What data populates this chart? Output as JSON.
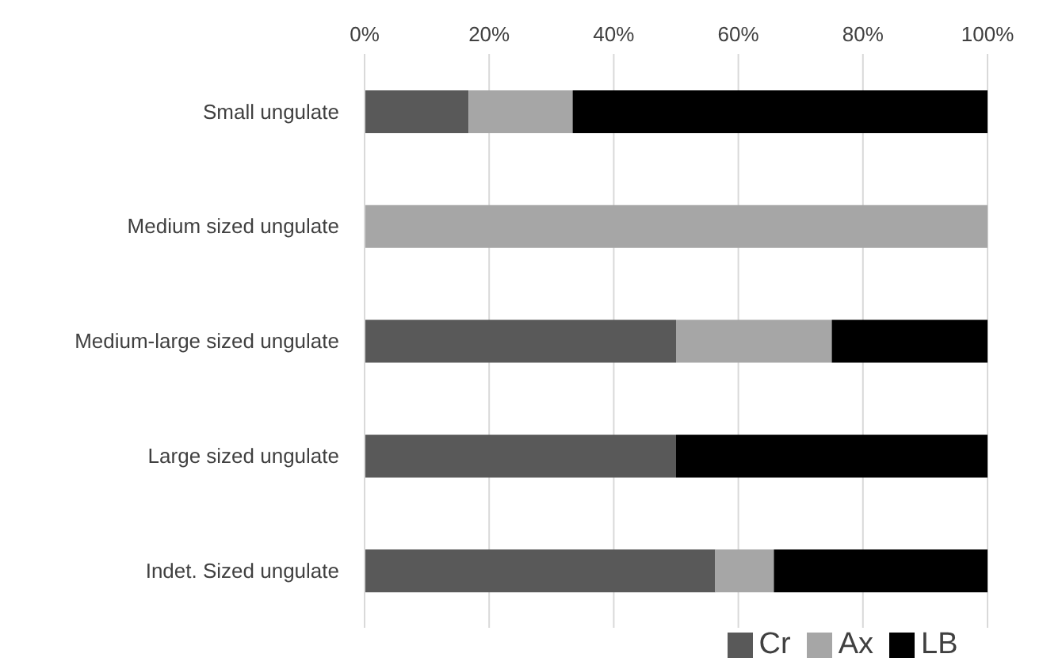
{
  "chart_data": {
    "type": "bar",
    "orientation": "horizontal",
    "stacked": true,
    "categories": [
      "Small ungulate",
      "Medium sized ungulate",
      "Medium-large sized ungulate",
      "Large sized ungulate",
      "Indet. Sized ungulate"
    ],
    "series": [
      {
        "name": "Cr",
        "color": "#595959",
        "values": [
          16.7,
          0,
          50,
          50,
          56.3
        ]
      },
      {
        "name": "Ax",
        "color": "#a6a6a6",
        "values": [
          16.7,
          100,
          25,
          0,
          9.4
        ]
      },
      {
        "name": "LB",
        "color": "#000000",
        "values": [
          66.6,
          0,
          25,
          50,
          34.3
        ]
      }
    ],
    "xlim": [
      0,
      100
    ],
    "xticks": [
      {
        "value": 0,
        "label": "0%"
      },
      {
        "value": 20,
        "label": "20%"
      },
      {
        "value": 40,
        "label": "40%"
      },
      {
        "value": 60,
        "label": "60%"
      },
      {
        "value": 80,
        "label": "80%"
      },
      {
        "value": 100,
        "label": "100%"
      }
    ],
    "grid": "x",
    "legend": "bottom"
  }
}
